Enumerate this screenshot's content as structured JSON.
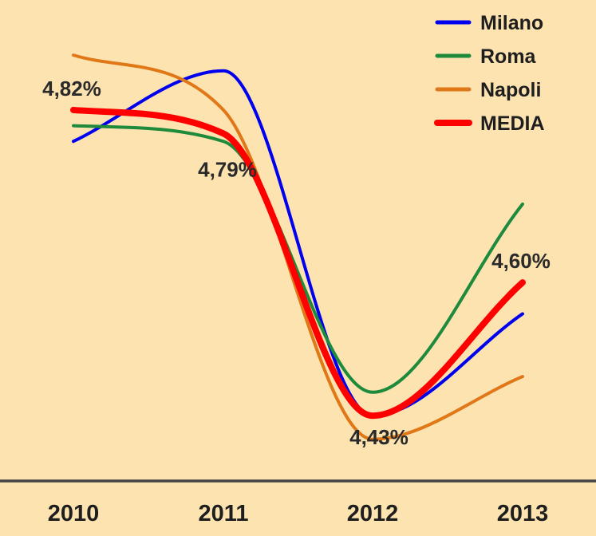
{
  "chart_data": {
    "type": "line",
    "title": "",
    "xlabel": "",
    "ylabel": "",
    "categories": [
      "2010",
      "2011",
      "2012",
      "2013"
    ],
    "series": [
      {
        "name": "Milano",
        "color": "#0000ee",
        "values": [
          4.78,
          4.87,
          4.43,
          4.56
        ]
      },
      {
        "name": "Roma",
        "color": "#1e8a3c",
        "values": [
          4.8,
          4.78,
          4.46,
          4.7
        ]
      },
      {
        "name": "Napoli",
        "color": "#e07818",
        "values": [
          4.89,
          4.82,
          4.4,
          4.48
        ]
      },
      {
        "name": "MEDIA",
        "color": "#ff0000",
        "values": [
          4.82,
          4.79,
          4.43,
          4.6
        ]
      }
    ],
    "data_labels": [
      "4,82%",
      "4,79%",
      "4,43%",
      "4,60%"
    ],
    "ylim": [
      4.36,
      4.94
    ],
    "grid": false,
    "legend_position": "top-right"
  }
}
